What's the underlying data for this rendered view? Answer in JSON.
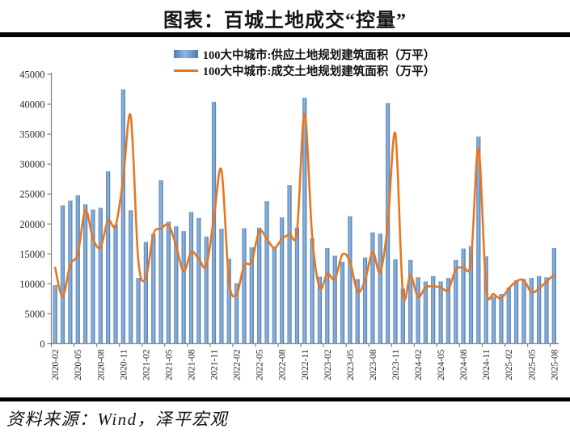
{
  "page": {
    "title": "图表：百城土地成交“控量”",
    "source": "资料来源：Wind，泽平宏观"
  },
  "legend": [
    {
      "label": "100大中城市:供应土地规划建筑面积（万平）",
      "type": "bar",
      "color": "#6f9ccd"
    },
    {
      "label": "100大中城市:成交土地规划建筑面积（万平）",
      "type": "line",
      "color": "#e8761f"
    }
  ],
  "colors": {
    "bar_edge": "#4a76ac",
    "bar_center": "#92b6dd",
    "line": "#e8761f",
    "axis": "#808080",
    "rule": "#000000"
  },
  "chart_data": {
    "type": "bar",
    "title": "图表：百城土地成交“控量”",
    "xlabel": "",
    "ylabel": "",
    "ylim": [
      0,
      45000
    ],
    "ytick_step": 5000,
    "yticks": [
      0,
      5000,
      10000,
      15000,
      20000,
      25000,
      30000,
      35000,
      40000,
      45000
    ],
    "xtick_every": 3,
    "grid": false,
    "legend_position": "top",
    "categories": [
      "2020-02",
      "2020-03",
      "2020-04",
      "2020-05",
      "2020-06",
      "2020-07",
      "2020-08",
      "2020-09",
      "2020-10",
      "2020-11",
      "2020-12",
      "2021-01",
      "2021-02",
      "2021-03",
      "2021-04",
      "2021-05",
      "2021-06",
      "2021-07",
      "2021-08",
      "2021-09",
      "2021-10",
      "2021-11",
      "2021-12",
      "2022-01",
      "2022-02",
      "2022-03",
      "2022-04",
      "2022-05",
      "2022-06",
      "2022-07",
      "2022-08",
      "2022-09",
      "2022-10",
      "2022-11",
      "2022-12",
      "2023-01",
      "2023-02",
      "2023-03",
      "2023-04",
      "2023-05",
      "2023-06",
      "2023-07",
      "2023-08",
      "2023-09",
      "2023-10",
      "2023-11",
      "2023-12",
      "2024-01",
      "2024-02",
      "2024-03",
      "2024-04",
      "2024-05",
      "2024-06",
      "2024-07",
      "2024-08",
      "2024-09",
      "2024-10",
      "2024-11",
      "2024-12",
      "2025-01",
      "2025-02",
      "2025-03",
      "2025-04",
      "2025-05",
      "2025-06",
      "2025-07",
      "2025-08"
    ],
    "series": [
      {
        "name": "100大中城市:供应土地规划建筑面积（万平）",
        "type": "bar",
        "values": [
          9800,
          23100,
          23900,
          24800,
          23300,
          22400,
          22700,
          28800,
          19900,
          42500,
          22300,
          11000,
          17000,
          18300,
          27300,
          20400,
          19600,
          18800,
          22000,
          21000,
          17900,
          40400,
          19200,
          14200,
          10100,
          19300,
          16100,
          19400,
          23800,
          16000,
          21100,
          26500,
          19400,
          41100,
          17600,
          11200,
          16000,
          14700,
          13700,
          21300,
          10800,
          14400,
          18600,
          18400,
          40200,
          14100,
          9200,
          14000,
          11100,
          10400,
          11300,
          10400,
          11000,
          14000,
          15900,
          16300,
          34600,
          14600,
          7900,
          8300,
          9400,
          10600,
          10800,
          11000,
          11300,
          11100,
          16000
        ]
      },
      {
        "name": "100大中城市:成交土地规划建筑面积（万平）",
        "type": "line",
        "values": [
          12700,
          7900,
          13200,
          15000,
          22300,
          17600,
          16100,
          20600,
          19700,
          27500,
          38000,
          14000,
          11000,
          18300,
          19200,
          19800,
          16400,
          12100,
          15300,
          14200,
          13000,
          21000,
          29000,
          10500,
          8300,
          13000,
          13700,
          18800,
          17500,
          16000,
          17500,
          18300,
          18900,
          38400,
          18000,
          9300,
          11700,
          10800,
          14900,
          13700,
          8700,
          10600,
          15300,
          12000,
          20000,
          35100,
          8500,
          11400,
          7800,
          9400,
          9600,
          9400,
          9000,
          12400,
          12800,
          13800,
          32600,
          9500,
          8300,
          7600,
          9200,
          10400,
          10600,
          8600,
          9200,
          10400,
          11500
        ]
      }
    ]
  }
}
